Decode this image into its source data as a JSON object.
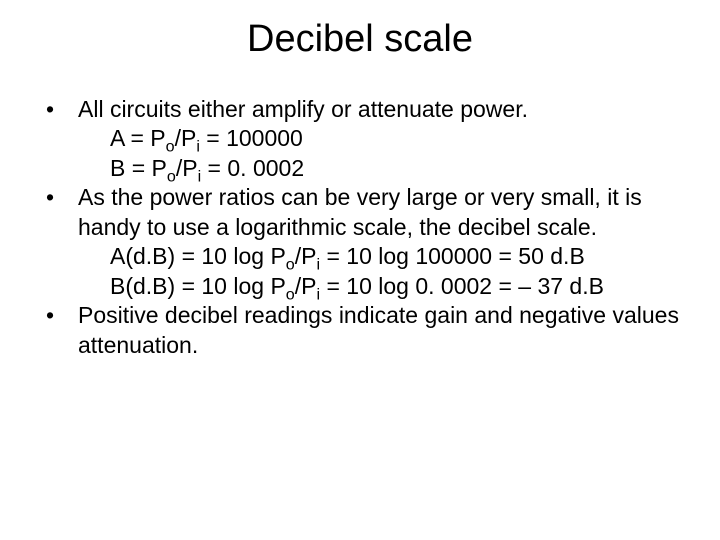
{
  "slide": {
    "title": "Decibel scale",
    "title_fontsize": 38,
    "body_fontsize": 23,
    "background_color": "#ffffff",
    "text_color": "#000000",
    "font_family": "Arial"
  },
  "bullets": [
    {
      "text": "All circuits either amplify or attenuate power.",
      "sublines": [
        {
          "prefix": "A = P",
          "sub1": "o",
          "mid1": "/P",
          "sub2": "i",
          "tail": " = 100000"
        },
        {
          "prefix": "B = P",
          "sub1": "o",
          "mid1": "/P",
          "sub2": "i",
          "tail": " = 0. 0002"
        }
      ]
    },
    {
      "text": "As the power ratios can be very large or very small, it is handy to use a logarithmic scale, the decibel scale.",
      "sublines": [
        {
          "prefix": "A(d.B) = 10 log P",
          "sub1": "o",
          "mid1": "/P",
          "sub2": "i",
          "tail": " = 10 log 100000 = 50 d.B"
        },
        {
          "prefix": "B(d.B) = 10 log P",
          "sub1": "o",
          "mid1": "/P",
          "sub2": "i",
          "tail": " = 10 log 0. 0002 = – 37 d.B"
        }
      ]
    },
    {
      "text": "Positive decibel readings indicate gain and negative values attenuation.",
      "sublines": []
    }
  ]
}
